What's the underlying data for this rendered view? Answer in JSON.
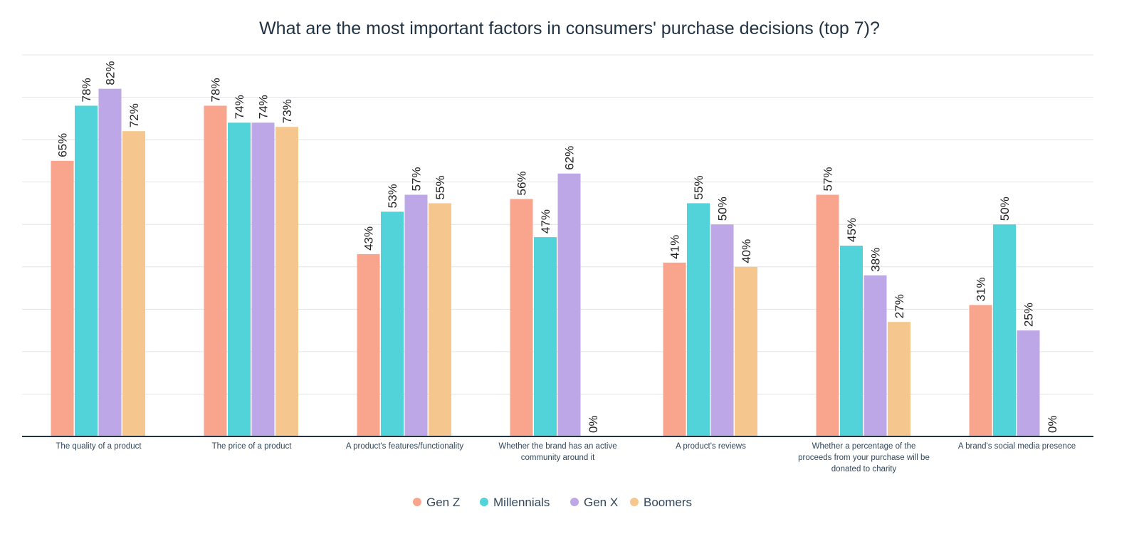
{
  "chart_data": {
    "type": "bar",
    "title": "What are the most important factors in consumers' purchase decisions (top 7)?",
    "xlabel": "",
    "ylabel": "",
    "ylim": [
      0,
      90
    ],
    "grid": true,
    "legend_position": "bottom",
    "categories": [
      [
        "The quality of a product"
      ],
      [
        "The price of a product"
      ],
      [
        "A product's features/functionality"
      ],
      [
        "Whether the brand has an active",
        "community around it"
      ],
      [
        "A product's reviews"
      ],
      [
        "Whether a percentage of the",
        "proceeds from your purchase will be",
        "donated to charity"
      ],
      [
        "A brand's social media presence"
      ]
    ],
    "series": [
      {
        "name": "Gen Z",
        "color": "#F9A58D",
        "values": [
          65,
          78,
          43,
          56,
          41,
          57,
          31
        ]
      },
      {
        "name": "Millennials",
        "color": "#51D3D9",
        "values": [
          78,
          74,
          53,
          47,
          55,
          45,
          50
        ]
      },
      {
        "name": "Gen X",
        "color": "#BEA7E6",
        "values": [
          82,
          74,
          57,
          62,
          50,
          38,
          25
        ]
      },
      {
        "name": "Boomers",
        "color": "#F5C78E",
        "values": [
          72,
          73,
          55,
          0,
          40,
          27,
          0
        ]
      }
    ],
    "value_suffix": "%"
  }
}
